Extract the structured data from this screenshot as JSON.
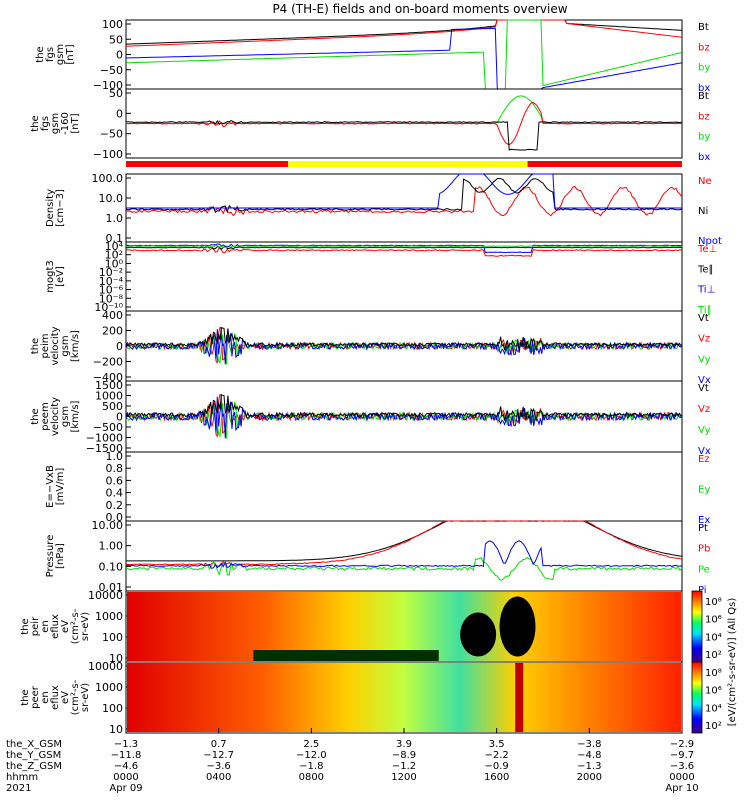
{
  "title": "P4 (TH-E) fields and on-board moments overview",
  "colors": {
    "black": "#000000",
    "red": "#ff0000",
    "green": "#00e000",
    "blue": "#0000ff",
    "yellow": "#ffff00"
  },
  "status_bar": {
    "segments": [
      {
        "from": "0000",
        "to": "0700",
        "color": "#ff0000"
      },
      {
        "from": "0700",
        "to": "1720",
        "color": "#ffff00"
      },
      {
        "from": "1720",
        "to": "2400",
        "color": "#ff0000"
      }
    ]
  },
  "panels": [
    {
      "id": "fgs-gsm",
      "ylabel": [
        "the",
        "fgs",
        "gsm",
        "[nT]"
      ],
      "ticks": [
        "100",
        "50",
        "0",
        "−50",
        "−100"
      ],
      "legend": [
        {
          "text": "Bt",
          "color": "#000000"
        },
        {
          "text": "bz",
          "color": "#ff0000"
        },
        {
          "text": "by",
          "color": "#00e000"
        },
        {
          "text": "bx",
          "color": "#0000ff"
        }
      ]
    },
    {
      "id": "fgs-dsl",
      "ylabel": [
        "the",
        "fgs",
        "gsm",
        "-160",
        "[nT]"
      ],
      "ticks": [
        "50",
        "0",
        "−50",
        "−100"
      ],
      "legend": [
        {
          "text": "Bt",
          "color": "#000000"
        },
        {
          "text": "bz",
          "color": "#ff0000"
        },
        {
          "text": "by",
          "color": "#00e000"
        },
        {
          "text": "bx",
          "color": "#0000ff"
        }
      ]
    },
    {
      "id": "density",
      "ylabel": [
        "Density",
        "[cm−3]"
      ],
      "ticks": [
        "100.0",
        "10.0",
        "1.0",
        "0.1"
      ],
      "legend": [
        {
          "text": "Ne",
          "color": "#ff0000"
        },
        {
          "text": "Ni",
          "color": "#000000"
        },
        {
          "text": "Npot",
          "color": "#0000ff"
        }
      ]
    },
    {
      "id": "temperature",
      "ylabel": [
        "mogt3",
        "[eV]"
      ],
      "ticks": [
        "10⁴",
        "10²",
        "10⁰",
        "10⁻²",
        "10⁻⁴",
        "10⁻⁶",
        "10⁻⁸",
        "10⁻¹⁰"
      ],
      "legend": [
        {
          "text": "Te⊥",
          "color": "#ff0000"
        },
        {
          "text": "Te∥",
          "color": "#000000"
        },
        {
          "text": "Ti⊥",
          "color": "#0000ff"
        },
        {
          "text": "Ti∥",
          "color": "#00e000"
        }
      ]
    },
    {
      "id": "ion-velocity",
      "ylabel": [
        "the",
        "peim",
        "velocity",
        "gsm",
        "[km/s]"
      ],
      "ticks": [
        "400",
        "200",
        "0",
        "−200",
        "−400"
      ],
      "legend": [
        {
          "text": "Vt",
          "color": "#000000"
        },
        {
          "text": "Vz",
          "color": "#ff0000"
        },
        {
          "text": "Vy",
          "color": "#00e000"
        },
        {
          "text": "Vx",
          "color": "#0000ff"
        }
      ]
    },
    {
      "id": "electron-velocity",
      "ylabel": [
        "the",
        "peem",
        "velocity",
        "gsm",
        "[km/s]"
      ],
      "ticks": [
        "1500",
        "1000",
        "500",
        "0",
        "−500",
        "−1000",
        "−1500"
      ],
      "legend": [
        {
          "text": "Vt",
          "color": "#000000"
        },
        {
          "text": "Vz",
          "color": "#ff0000"
        },
        {
          "text": "Vy",
          "color": "#00e000"
        },
        {
          "text": "Vx",
          "color": "#0000ff"
        }
      ]
    },
    {
      "id": "efield",
      "ylabel": [
        "E=−VxB",
        "[mV/m]"
      ],
      "ticks": [
        "1.0",
        "0.8",
        "0.6",
        "0.4",
        "0.2",
        "0.0"
      ],
      "legend": [
        {
          "text": "Ez",
          "color": "#ff0000"
        },
        {
          "text": "Ey",
          "color": "#00e000"
        },
        {
          "text": "Ex",
          "color": "#0000ff"
        }
      ]
    },
    {
      "id": "pressure",
      "ylabel": [
        "Pressure",
        "[nPa]"
      ],
      "ticks": [
        "10.00",
        "1.00",
        "0.10",
        "0.01"
      ],
      "legend": [
        {
          "text": "Pt",
          "color": "#000000"
        },
        {
          "text": "Pb",
          "color": "#ff0000"
        },
        {
          "text": "Pe",
          "color": "#00e000"
        },
        {
          "text": "Pi",
          "color": "#0000ff"
        }
      ]
    },
    {
      "id": "ion-spec",
      "ylabel": [
        "the",
        "peir",
        "en",
        "eflux",
        "eV",
        "(cm²-s-",
        "sr-eV)"
      ],
      "ticks": [
        "10000",
        "1000",
        "100",
        "10"
      ],
      "legend": []
    },
    {
      "id": "elec-spec",
      "ylabel": [
        "the",
        "peer",
        "en",
        "eflux",
        "eV",
        "(cm²-s-",
        "sr-eV)"
      ],
      "ticks": [
        "10000",
        "1000",
        "100",
        "10"
      ],
      "legend": []
    }
  ],
  "colorbar": {
    "label": "[eV/(cm²-s-sr-eV)] (All Qs)",
    "ticks1": [
      "10⁸",
      "10⁶",
      "10⁴",
      "10²"
    ],
    "ticks2": [
      "10⁸",
      "10⁶",
      "10⁴",
      "10²"
    ]
  },
  "xaxis": {
    "row_labels": [
      "the_X_GSM",
      "the_Y_GSM",
      "the_Z_GSM",
      "hhmm",
      "2021"
    ],
    "columns": [
      {
        "hhmm": "0000",
        "x": "−1.3",
        "y": "−11.8",
        "z": "−4.6",
        "date": "Apr 09"
      },
      {
        "hhmm": "0400",
        "x": "0.7",
        "y": "−12.7",
        "z": "−3.6",
        "date": ""
      },
      {
        "hhmm": "0800",
        "x": "2.5",
        "y": "−12.0",
        "z": "−1.8",
        "date": ""
      },
      {
        "hhmm": "1200",
        "x": "3.9",
        "y": "−8.9",
        "z": "−1.2",
        "date": ""
      },
      {
        "hhmm": "1600",
        "x": "3.5",
        "y": "−2.2",
        "z": "−0.9",
        "date": ""
      },
      {
        "hhmm": "2000",
        "x": "−3.8",
        "y": "−4.8",
        "z": "−1.3",
        "date": ""
      },
      {
        "hhmm": "0000",
        "x": "−2.9",
        "y": "−9.7",
        "z": "−3.6",
        "date": "Apr 10"
      }
    ]
  },
  "chart_data": {
    "type": "line",
    "title": "P4 (TH-E) fields and on-board moments overview",
    "x_hours": [
      0,
      2,
      4,
      6,
      8,
      10,
      12,
      14,
      16,
      17,
      18,
      19,
      20,
      22,
      24
    ],
    "series": [
      {
        "name": "Bt",
        "values": [
          30,
          28,
          25,
          30,
          40,
          55,
          75,
          95,
          100,
          100,
          100,
          90,
          70,
          50,
          45
        ]
      },
      {
        "name": "bz",
        "values": [
          25,
          22,
          20,
          25,
          35,
          50,
          70,
          90,
          100,
          100,
          100,
          90,
          60,
          30,
          20
        ]
      },
      {
        "name": "by",
        "values": [
          -10,
          -12,
          -15,
          -10,
          -5,
          5,
          20,
          40,
          60,
          0,
          -100,
          -70,
          -50,
          -30,
          -20
        ]
      },
      {
        "name": "bx",
        "values": [
          -15,
          -18,
          -20,
          -15,
          -10,
          0,
          10,
          30,
          80,
          -100,
          -100,
          -80,
          -50,
          -30,
          -20
        ]
      },
      {
        "name": "Ni",
        "values": [
          0.5,
          0.6,
          1.0,
          0.8,
          0.8,
          0.8,
          0.8,
          0.9,
          2.0,
          5.0,
          1.0,
          1.0,
          0.8,
          0.6,
          0.5
        ]
      },
      {
        "name": "Pt",
        "values": [
          0.3,
          0.35,
          0.4,
          0.5,
          0.7,
          1.0,
          1.8,
          4.0,
          10,
          10,
          10,
          5.0,
          2.0,
          0.7,
          0.5
        ]
      }
    ]
  }
}
